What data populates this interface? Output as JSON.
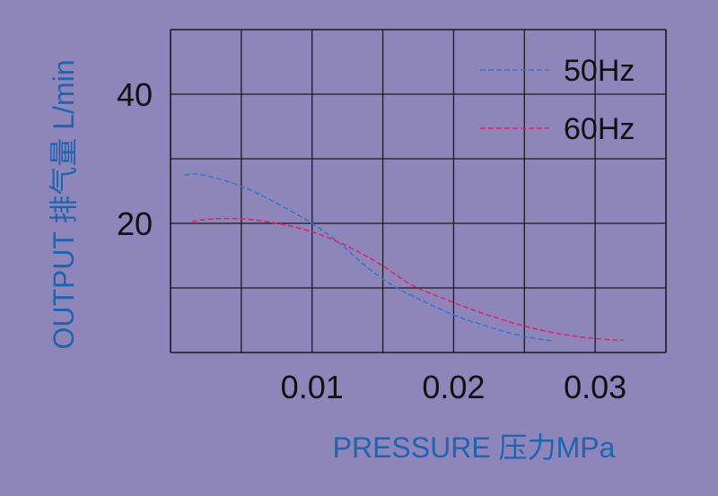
{
  "colors": {
    "background": "#8e86ba",
    "grid": "#1a1a1a",
    "axis_label": "#1f64b0",
    "series_50hz": "#2e78c8",
    "series_60hz": "#e0206a"
  },
  "chart_data": {
    "type": "line",
    "title": "",
    "xlabel": "PRESSURE 压力MPa",
    "ylabel": "OUTPUT 排气量 L/min",
    "xlim": [
      0,
      0.035
    ],
    "ylim": [
      0,
      50
    ],
    "x_ticks": [
      0.01,
      0.02,
      0.03
    ],
    "x_tick_labels": [
      "0.01",
      "0.02",
      "0.03"
    ],
    "y_ticks": [
      20,
      40
    ],
    "y_tick_labels": [
      "20",
      "40"
    ],
    "grid": true,
    "legend": "top-right",
    "series": [
      {
        "name": "50Hz",
        "color": "#2e78c8",
        "dash": "dashed",
        "x": [
          0.001,
          0.002,
          0.004,
          0.006,
          0.008,
          0.01,
          0.012,
          0.014,
          0.016,
          0.018,
          0.02,
          0.022,
          0.024,
          0.026,
          0.027
        ],
        "y": [
          27.5,
          27.6,
          26.5,
          24.8,
          22.5,
          20.0,
          16.8,
          13.0,
          10.0,
          7.8,
          5.8,
          4.3,
          3.0,
          2.1,
          1.8
        ]
      },
      {
        "name": "60Hz",
        "color": "#e0206a",
        "dash": "dashed",
        "x": [
          0.0015,
          0.003,
          0.005,
          0.007,
          0.009,
          0.011,
          0.013,
          0.015,
          0.017,
          0.019,
          0.021,
          0.023,
          0.025,
          0.027,
          0.029,
          0.031,
          0.032
        ],
        "y": [
          20.3,
          20.7,
          20.7,
          20.2,
          19.3,
          17.9,
          15.9,
          13.4,
          10.5,
          8.6,
          6.9,
          5.4,
          4.1,
          3.1,
          2.4,
          2.0,
          1.9
        ]
      }
    ]
  }
}
